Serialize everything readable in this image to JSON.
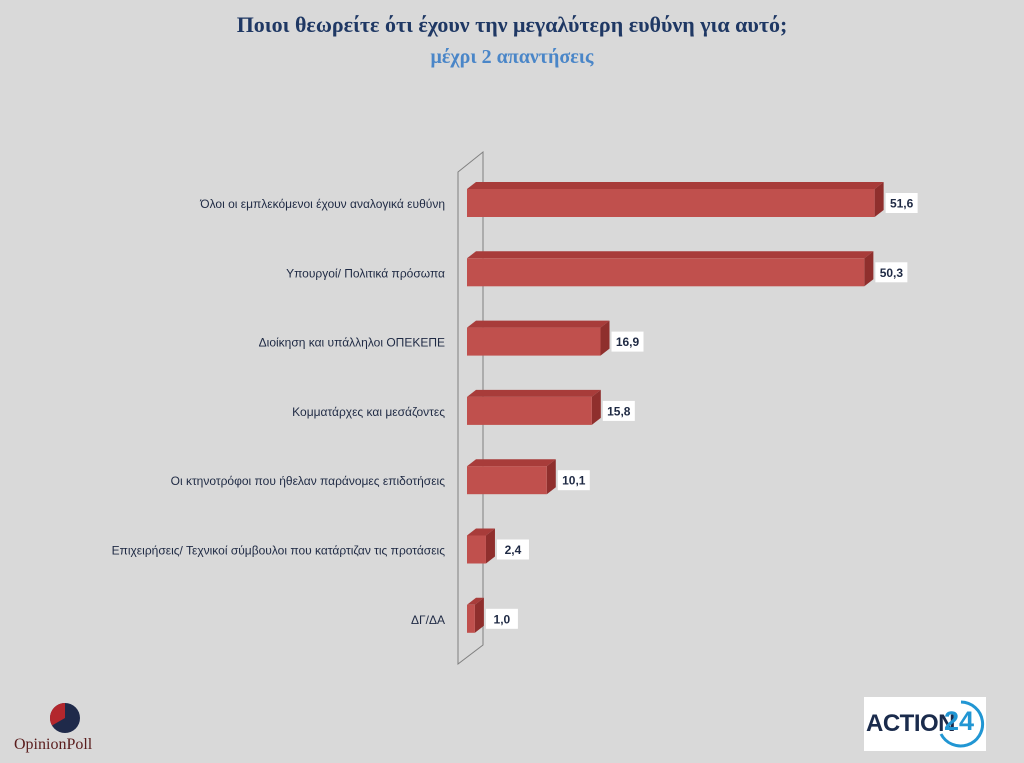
{
  "chart_data": {
    "type": "bar",
    "orientation": "horizontal",
    "title": "Ποιοι θεωρείτε ότι έχουν την μεγαλύτερη ευθύνη για αυτό;",
    "subtitle": "μέχρι 2 απαντήσεις",
    "categories": [
      "Όλοι οι εμπλεκόμενοι έχουν αναλογικά ευθύνη",
      "Υπουργοί/ Πολιτικά πρόσωπα",
      "Διοίκηση και υπάλληλοι ΟΠΕΚΕΠΕ",
      "Κομματάρχες και μεσάζοντες",
      "Οι κτηνοτρόφοι που ήθελαν παράνομες επιδοτήσεις",
      "Επιχειρήσεις/ Τεχνικοί σύμβουλοι που κατάρτιζαν τις προτάσεις",
      "ΔΓ/ΔΑ"
    ],
    "values": [
      51.6,
      50.3,
      16.9,
      15.8,
      10.1,
      2.4,
      1.0
    ],
    "value_labels": [
      "51,6",
      "50,3",
      "16,9",
      "15,8",
      "10,1",
      "2,4",
      "1,0"
    ],
    "xlim": [
      0,
      55
    ],
    "grid": false,
    "bar_color": "#c0504d",
    "bar_top_color": "#a83c3a"
  },
  "logos": {
    "opinion_poll": {
      "word1": "Opinion",
      "word2": "Poll",
      "color": "#7a1f1f"
    },
    "action24": {
      "word": "ACTION",
      "number": "24",
      "accent": "#2196d3"
    }
  }
}
